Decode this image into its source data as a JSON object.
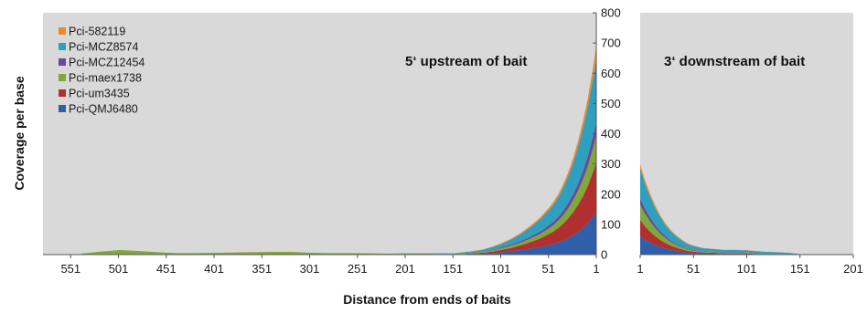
{
  "chart_data": {
    "type": "area",
    "stacked": true,
    "xlabel": "Distance from ends of baits",
    "ylabel": "Coverage per base",
    "ylim": [
      0,
      800
    ],
    "yticks": [
      0,
      100,
      200,
      300,
      400,
      500,
      600,
      700,
      800
    ],
    "grid": false,
    "legend_position": "top-left",
    "background_color": "#d9d9d9",
    "series": [
      {
        "name": "Pci-QMJ6480",
        "color": "#2e5fa8"
      },
      {
        "name": "Pci-um3435",
        "color": "#b22f2f"
      },
      {
        "name": "Pci-maex1738",
        "color": "#7fa83a"
      },
      {
        "name": "Pci-MCZ12454",
        "color": "#6a4a98"
      },
      {
        "name": "Pci-MCZ8574",
        "color": "#2f9fbd"
      },
      {
        "name": "Pci-582119",
        "color": "#ec8a2d"
      }
    ],
    "legend_order": [
      "Pci-582119",
      "Pci-MCZ8574",
      "Pci-MCZ12454",
      "Pci-maex1738",
      "Pci-um3435",
      "Pci-QMJ6480"
    ],
    "panels": [
      {
        "id": "upstream",
        "annotation": "5‘ upstream of bait",
        "x_direction": "reversed",
        "xlim": [
          580,
          1
        ],
        "xticks": [
          551,
          501,
          451,
          401,
          351,
          301,
          251,
          201,
          151,
          101,
          51,
          1
        ],
        "x": [
          540,
          520,
          500,
          480,
          460,
          440,
          420,
          400,
          380,
          360,
          340,
          320,
          300,
          280,
          260,
          240,
          220,
          200,
          180,
          160,
          150,
          140,
          130,
          120,
          110,
          100,
          90,
          80,
          70,
          60,
          50,
          45,
          40,
          35,
          30,
          25,
          20,
          15,
          10,
          7,
          4,
          1
        ],
        "values": {
          "Pci-QMJ6480": [
            0,
            0,
            0,
            0,
            0,
            0,
            0,
            0,
            0,
            0,
            0,
            0,
            0,
            0,
            0,
            0,
            0,
            0,
            0,
            0,
            0,
            1,
            2,
            3,
            5,
            8,
            11,
            15,
            20,
            25,
            32,
            36,
            41,
            47,
            55,
            64,
            75,
            88,
            103,
            115,
            127,
            140
          ],
          "Pci-um3435": [
            0,
            0,
            0,
            0,
            0,
            0,
            0,
            0,
            0,
            0,
            0,
            0,
            0,
            0,
            0,
            0,
            0,
            0,
            0,
            0,
            0,
            1,
            2,
            3,
            5,
            8,
            11,
            16,
            21,
            28,
            37,
            42,
            49,
            57,
            66,
            77,
            90,
            105,
            123,
            137,
            150,
            165
          ],
          "Pci-maex1738": [
            3,
            10,
            15,
            12,
            8,
            5,
            5,
            6,
            7,
            8,
            9,
            9,
            6,
            5,
            5,
            4,
            3,
            3,
            3,
            2,
            2,
            2,
            2,
            3,
            4,
            5,
            7,
            9,
            12,
            15,
            19,
            22,
            25,
            29,
            34,
            40,
            47,
            55,
            65,
            72,
            80,
            90
          ],
          "Pci-MCZ12454": [
            0,
            0,
            0,
            0,
            0,
            0,
            0,
            0,
            0,
            0,
            0,
            0,
            0,
            0,
            0,
            0,
            0,
            0,
            0,
            0,
            0,
            1,
            1,
            1,
            2,
            3,
            4,
            5,
            6,
            8,
            10,
            11,
            13,
            15,
            17,
            20,
            24,
            28,
            33,
            37,
            41,
            45
          ],
          "Pci-MCZ8574": [
            0,
            0,
            0,
            0,
            0,
            0,
            0,
            0,
            0,
            0,
            0,
            0,
            0,
            0,
            0,
            0,
            0,
            1,
            1,
            2,
            2,
            3,
            4,
            6,
            9,
            12,
            17,
            23,
            31,
            40,
            51,
            58,
            66,
            77,
            89,
            104,
            121,
            141,
            163,
            178,
            193,
            210
          ],
          "Pci-582119": [
            0,
            0,
            0,
            0,
            0,
            0,
            0,
            0,
            0,
            0,
            0,
            0,
            0,
            0,
            0,
            0,
            0,
            0,
            0,
            0,
            0,
            0,
            1,
            1,
            1,
            2,
            3,
            4,
            5,
            6,
            8,
            9,
            10,
            12,
            14,
            17,
            20,
            24,
            28,
            32,
            36,
            40
          ]
        }
      },
      {
        "id": "downstream",
        "annotation": "3‘ downstream of bait",
        "x_direction": "normal",
        "xlim": [
          1,
          201
        ],
        "xticks": [
          1,
          51,
          101,
          151,
          201
        ],
        "x": [
          1,
          5,
          10,
          15,
          20,
          25,
          30,
          35,
          40,
          45,
          50,
          60,
          70,
          80,
          90,
          100,
          110,
          120,
          130,
          140,
          150,
          155
        ],
        "values": {
          "Pci-QMJ6480": [
            60,
            50,
            40,
            32,
            25,
            20,
            15,
            12,
            9,
            7,
            5,
            4,
            3,
            2,
            2,
            2,
            1,
            1,
            1,
            1,
            0,
            0
          ],
          "Pci-um3435": [
            55,
            46,
            37,
            29,
            23,
            18,
            14,
            11,
            8,
            6,
            5,
            3,
            3,
            2,
            2,
            2,
            1,
            1,
            1,
            1,
            0,
            0
          ],
          "Pci-maex1738": [
            50,
            42,
            34,
            27,
            21,
            16,
            12,
            9,
            7,
            5,
            4,
            3,
            2,
            2,
            2,
            2,
            1,
            1,
            1,
            0,
            0,
            0
          ],
          "Pci-MCZ12454": [
            20,
            17,
            13,
            10,
            8,
            6,
            5,
            4,
            3,
            2,
            2,
            1,
            1,
            1,
            1,
            1,
            1,
            0,
            0,
            0,
            0,
            0
          ],
          "Pci-MCZ8574": [
            100,
            85,
            70,
            57,
            46,
            37,
            30,
            24,
            20,
            16,
            13,
            10,
            9,
            8,
            8,
            7,
            7,
            6,
            5,
            4,
            2,
            0
          ],
          "Pci-582119": [
            15,
            12,
            10,
            8,
            6,
            5,
            4,
            3,
            3,
            2,
            2,
            1,
            1,
            1,
            1,
            1,
            1,
            0,
            0,
            0,
            0,
            0
          ]
        }
      }
    ]
  }
}
